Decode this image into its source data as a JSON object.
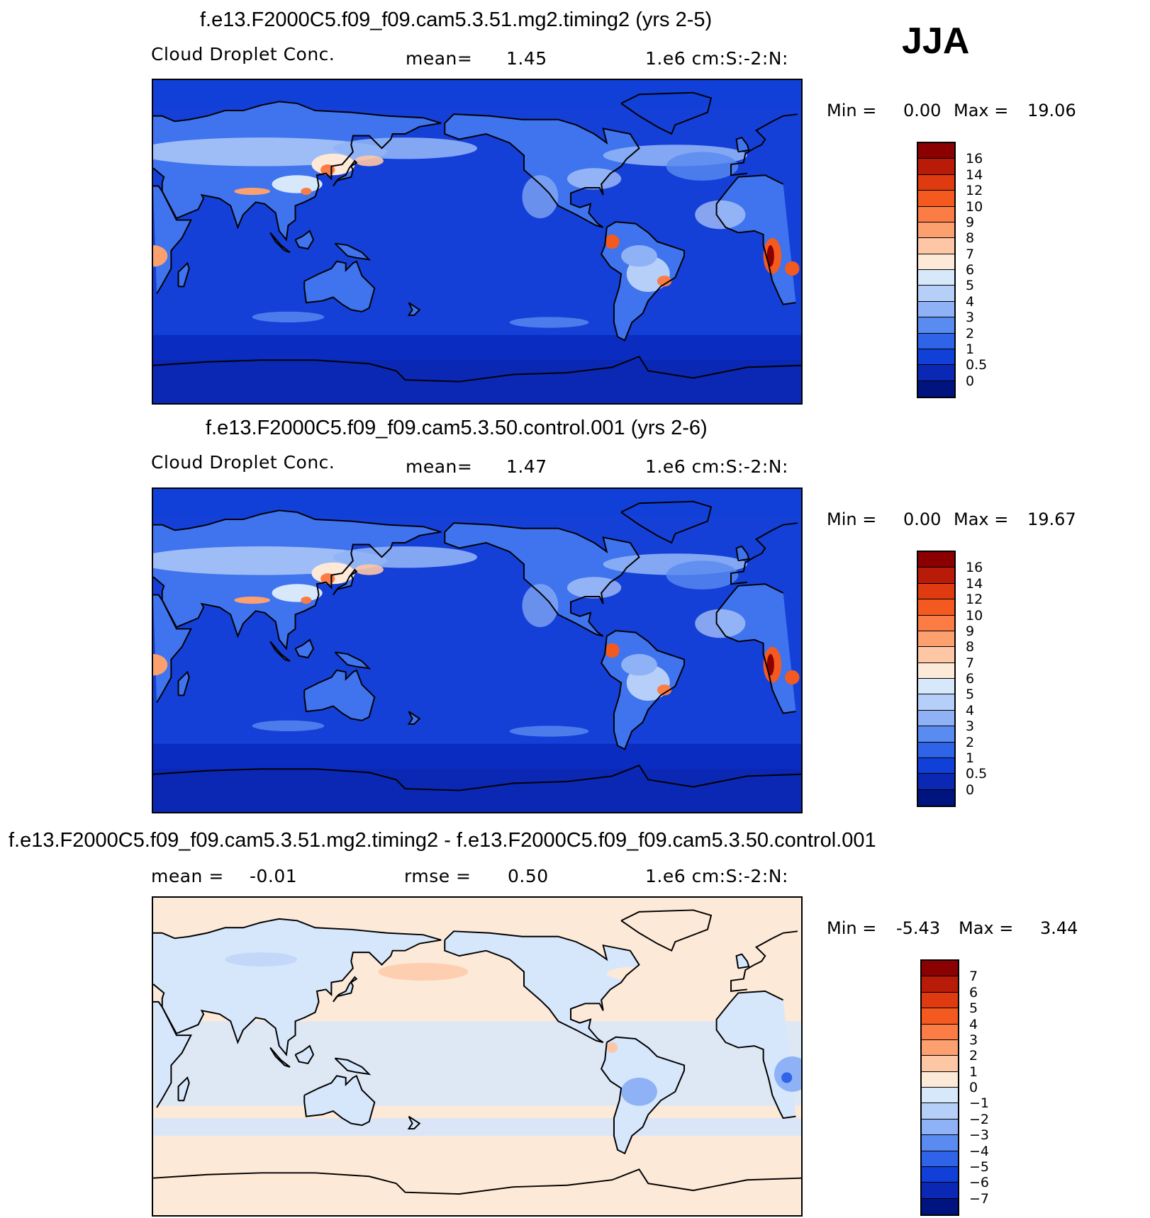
{
  "season": "JJA",
  "panels": [
    {
      "title": "f.e13.F2000C5.f09_f09.cam5.3.51.mg2.timing2 (yrs 2-5)",
      "left_label": "Cloud Droplet Conc.",
      "center_label": "mean=",
      "center_value": "1.45",
      "right_label": "1.e6 cm:S:-2:N:",
      "min_label": "Min =",
      "min_value": "0.00",
      "max_label": "Max =",
      "max_value": "19.06",
      "field": "abs",
      "colorbar_labels": [
        "16",
        "14",
        "12",
        "10",
        "9",
        "8",
        "7",
        "6",
        "5",
        "4",
        "3",
        "2",
        "1",
        "0.5",
        "0"
      ]
    },
    {
      "title": "f.e13.F2000C5.f09_f09.cam5.3.50.control.001 (yrs 2-6)",
      "left_label": "Cloud Droplet Conc.",
      "center_label": "mean=",
      "center_value": "1.47",
      "right_label": "1.e6 cm:S:-2:N:",
      "min_label": "Min =",
      "min_value": "0.00",
      "max_label": "Max =",
      "max_value": "19.67",
      "field": "abs",
      "colorbar_labels": [
        "16",
        "14",
        "12",
        "10",
        "9",
        "8",
        "7",
        "6",
        "5",
        "4",
        "3",
        "2",
        "1",
        "0.5",
        "0"
      ]
    },
    {
      "title": "f.e13.F2000C5.f09_f09.cam5.3.51.mg2.timing2 - f.e13.F2000C5.f09_f09.cam5.3.50.control.001",
      "left_label": "mean =",
      "left_value": "-0.01",
      "center_label": "rmse =",
      "center_value": "0.50",
      "right_label": "1.e6 cm:S:-2:N:",
      "min_label": "Min =",
      "min_value": "-5.43",
      "max_label": "Max =",
      "max_value": "3.44",
      "field": "diff",
      "colorbar_labels": [
        "7",
        "6",
        "5",
        "4",
        "3",
        "2",
        "1",
        "0",
        "-1",
        "-2",
        "-3",
        "-4",
        "-5",
        "-6",
        "-7"
      ]
    }
  ],
  "colors": {
    "abs_scale": [
      "#8b0000",
      "#b81c08",
      "#e03a10",
      "#f45a20",
      "#fb7c44",
      "#fca070",
      "#fdc7a6",
      "#fde9d8",
      "#d8e8fb",
      "#b6cff9",
      "#8fb2f6",
      "#5a8bf0",
      "#2f63e8",
      "#1040d8",
      "#0a28b4",
      "#001480"
    ],
    "diff_scale": [
      "#8b0000",
      "#b81c08",
      "#e03a10",
      "#f45a20",
      "#fb7c44",
      "#fca070",
      "#fdc7a6",
      "#fde9d8",
      "#d8e8fb",
      "#b6cff9",
      "#8fb2f6",
      "#5a8bf0",
      "#2f63e8",
      "#1040d8",
      "#0a28b4",
      "#001480"
    ],
    "ocean_abs": "#1540d8",
    "ocean_abs_deep": "#0a2cc0",
    "land_abs": "#3f74ee",
    "ocean_diff": "#fde9d8",
    "land_diff": "#d6e6fb",
    "coastline": "#000000"
  }
}
